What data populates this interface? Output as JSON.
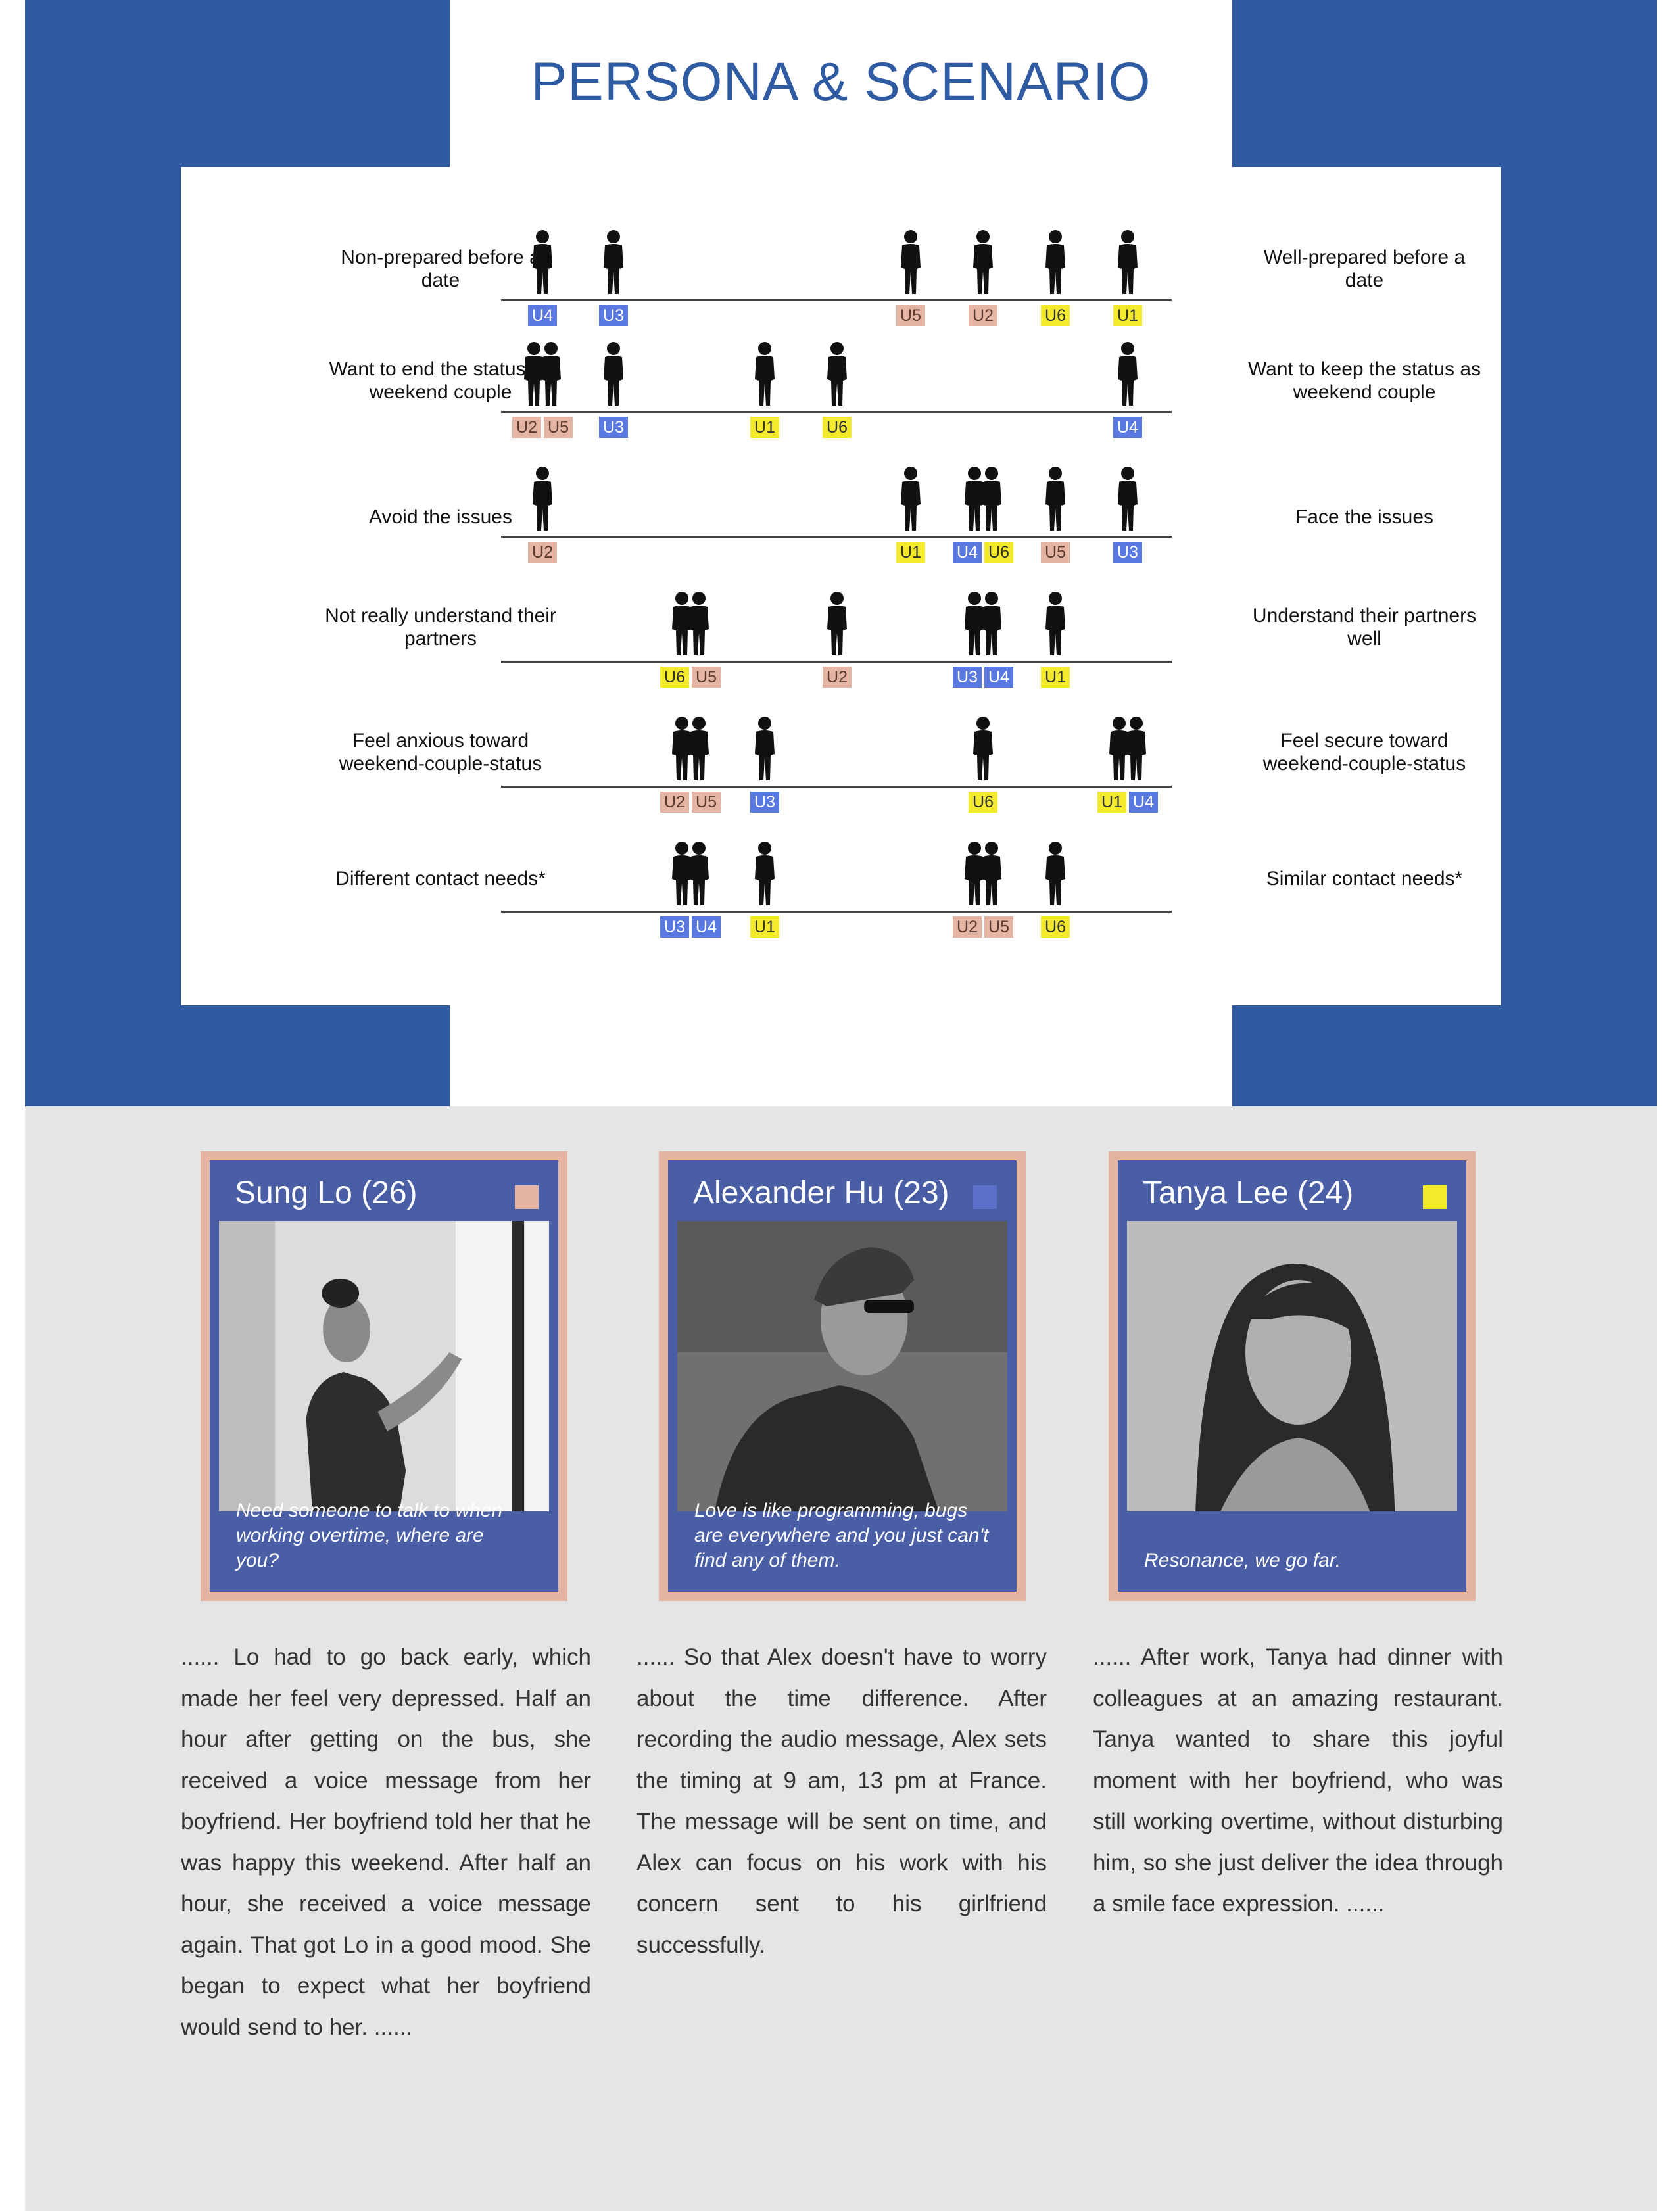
{
  "page": {
    "title": "PERSONA & SCENARIO"
  },
  "colors": {
    "blue": "#5a79e0",
    "salmon": "#e5b5a3",
    "yellow": "#f2ea2b",
    "band": "#2f5ba3"
  },
  "scales": [
    {
      "left": "Non-prepared before a date",
      "right": "Well-prepared before a date",
      "markers": [
        {
          "users": [
            "U4"
          ]
        },
        {
          "users": [
            "U3"
          ]
        },
        {
          "users": [
            "U5"
          ]
        },
        {
          "users": [
            "U2"
          ]
        },
        {
          "users": [
            "U6"
          ]
        },
        {
          "users": [
            "U1"
          ]
        }
      ]
    },
    {
      "left": "Want to end the status as weekend couple",
      "right": "Want to keep the status as weekend couple",
      "markers": [
        {
          "users": [
            "U2",
            "U5"
          ]
        },
        {
          "users": [
            "U3"
          ]
        },
        {
          "users": [
            "U1"
          ]
        },
        {
          "users": [
            "U6"
          ]
        },
        {
          "users": [
            "U4"
          ]
        }
      ]
    },
    {
      "left": "Avoid the issues",
      "right": "Face the issues",
      "markers": [
        {
          "users": [
            "U2"
          ]
        },
        {
          "users": [
            "U1"
          ]
        },
        {
          "users": [
            "U4",
            "U6"
          ]
        },
        {
          "users": [
            "U5"
          ]
        },
        {
          "users": [
            "U3"
          ]
        }
      ]
    },
    {
      "left": "Not really understand their partners",
      "right": "Understand their partners well",
      "markers": [
        {
          "users": [
            "U6",
            "U5"
          ]
        },
        {
          "users": [
            "U2"
          ]
        },
        {
          "users": [
            "U3",
            "U4"
          ]
        },
        {
          "users": [
            "U1"
          ]
        }
      ]
    },
    {
      "left": "Feel anxious toward weekend-couple-status",
      "right": "Feel secure toward weekend-couple-status",
      "markers": [
        {
          "users": [
            "U2",
            "U5"
          ]
        },
        {
          "users": [
            "U3"
          ]
        },
        {
          "users": [
            "U6"
          ]
        },
        {
          "users": [
            "U1",
            "U4"
          ]
        }
      ]
    },
    {
      "left": "Different contact needs*",
      "right": "Similar contact needs*",
      "markers": [
        {
          "users": [
            "U3",
            "U4"
          ]
        },
        {
          "users": [
            "U1"
          ]
        },
        {
          "users": [
            "U2",
            "U5"
          ]
        },
        {
          "users": [
            "U6"
          ]
        }
      ]
    }
  ],
  "user_colors": {
    "U1": "yellow",
    "U2": "salmon",
    "U3": "blue",
    "U4": "blue",
    "U5": "salmon",
    "U6": "yellow"
  },
  "personas": [
    {
      "name": "Sung Lo (26)",
      "square_color": "#e5b5a3",
      "quote": "Need someone to talk to when working overtime, where are you?",
      "story": "...... Lo had to go back early, which made her feel very depressed. Half an hour after getting on the bus, she received a voice message from her boyfriend. Her boyfriend told her that he was happy this weekend. After half an hour, she received a voice message again. That got Lo in a good mood. She began to expect what her boyfriend would send to her. ......"
    },
    {
      "name": "Alexander Hu (23)",
      "square_color": "#5a6fc8",
      "quote": "Love is like programming, bugs are everywhere and you just can't find any of them.",
      "story": "...... So that Alex doesn't have to worry about the time difference. After recording the audio message, Alex sets the timing at 9 am, 13 pm at France. The message will be sent on time, and Alex can focus on his work with his concern sent to his girlfriend successfully."
    },
    {
      "name": "Tanya Lee (24)",
      "square_color": "#f2ea2b",
      "quote": "Resonance, we go far.",
      "story": "...... After work, Tanya had dinner with colleagues at an amazing restaurant. Tanya wanted to share this joyful moment with her boyfriend, who was still working overtime, without disturbing him, so she just deliver the idea through a smile face expression. ......"
    }
  ]
}
